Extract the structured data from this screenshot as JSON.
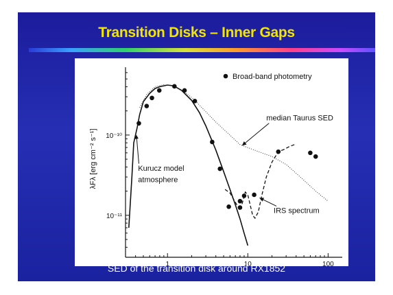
{
  "slide": {
    "title": "Transition Disks – Inner Gaps",
    "caption": "SED of the transition disk around RX1852"
  },
  "colors": {
    "background": "#2630b4",
    "title": "#f2e600",
    "caption": "#ffffff"
  },
  "chart_data": {
    "type": "scatter",
    "xscale": "log",
    "yscale": "log",
    "xlim": [
      0.3,
      150
    ],
    "ylim": [
      3e-12,
      7e-10
    ],
    "ylabel": "λFλ [erg cm⁻² s⁻¹]",
    "x_ticks": [
      "1",
      "10",
      "100"
    ],
    "y_ticks": [
      "10⁻¹⁰",
      "10⁻¹¹"
    ],
    "legend": {
      "marker_label": "Broad-band photometry",
      "placement": "top-right"
    },
    "annotations": [
      {
        "text": "median Taurus SED",
        "x": 17,
        "y": 1.52e-10,
        "x_end": 8.5,
        "y_end": 7.4e-11
      },
      {
        "text": "Kurucz model",
        "x": 0.43,
        "y": 3.6e-11
      },
      {
        "text": "atmosphere",
        "x": 0.43,
        "y": 2.6e-11
      },
      {
        "text": "IRS spectrum",
        "x": 21,
        "y": 1.07e-11,
        "x_end": 14,
        "y_end": 1.65e-11
      }
    ],
    "series": [
      {
        "name": "Broad-band photometry",
        "style": "points",
        "points": [
          [
            0.44,
            1.4e-10
          ],
          [
            0.55,
            2.3e-10
          ],
          [
            0.64,
            2.9e-10
          ],
          [
            0.79,
            3.6e-10
          ],
          [
            1.22,
            4.05e-10
          ],
          [
            1.63,
            3.6e-10
          ],
          [
            2.19,
            2.65e-10
          ],
          [
            3.6,
            8.2e-11
          ],
          [
            4.5,
            3.8e-11
          ],
          [
            5.8,
            1.28e-11
          ],
          [
            8.0,
            1.5e-11
          ],
          [
            8.0,
            1.25e-11
          ],
          [
            9.0,
            1.75e-11
          ],
          [
            12,
            1.8e-11
          ],
          [
            24,
            6.2e-11
          ],
          [
            60,
            6e-11
          ],
          [
            70,
            5.4e-11
          ]
        ]
      },
      {
        "name": "Kurucz model atmosphere",
        "style": "solid",
        "points": [
          [
            0.33,
            7e-12
          ],
          [
            0.36,
            3e-11
          ],
          [
            0.38,
            8e-11
          ],
          [
            0.42,
            1.25e-10
          ],
          [
            0.45,
            1.8e-10
          ],
          [
            0.5,
            2.6e-10
          ],
          [
            0.6,
            3.3e-10
          ],
          [
            0.7,
            3.8e-10
          ],
          [
            0.8,
            4e-10
          ],
          [
            1.0,
            4.2e-10
          ],
          [
            1.2,
            4.1e-10
          ],
          [
            1.5,
            3.6e-10
          ],
          [
            2.0,
            2.7e-10
          ],
          [
            2.5,
            1.9e-10
          ],
          [
            3.0,
            1.3e-10
          ],
          [
            4.0,
            6.5e-11
          ],
          [
            5.0,
            3.5e-11
          ],
          [
            6.0,
            2.1e-11
          ],
          [
            7.0,
            1.35e-11
          ],
          [
            8.0,
            9e-12
          ],
          [
            9.0,
            6e-12
          ],
          [
            10.0,
            4.2e-12
          ]
        ]
      },
      {
        "name": "median Taurus SED",
        "style": "dotted",
        "points": [
          [
            0.45,
            2.2e-10
          ],
          [
            0.55,
            3.2e-10
          ],
          [
            0.7,
            4e-10
          ],
          [
            0.9,
            4.25e-10
          ],
          [
            1.2,
            4.1e-10
          ],
          [
            1.6,
            3.5e-10
          ],
          [
            2.2,
            2.7e-10
          ],
          [
            3.0,
            1.95e-10
          ],
          [
            4.0,
            1.45e-10
          ],
          [
            6.0,
            1e-10
          ],
          [
            8.0,
            7.6e-11
          ],
          [
            12,
            6.5e-11
          ],
          [
            20,
            5.4e-11
          ],
          [
            30,
            4.3e-11
          ],
          [
            45,
            3e-11
          ],
          [
            70,
            2e-11
          ],
          [
            100,
            1.5e-11
          ]
        ]
      },
      {
        "name": "IRS spectrum",
        "style": "dashed",
        "points": [
          [
            5.2,
            2.1e-11
          ],
          [
            6.0,
            1.9e-11
          ],
          [
            7.0,
            1.45e-11
          ],
          [
            8.0,
            1.15e-11
          ],
          [
            8.6,
            1.45e-11
          ],
          [
            9.3,
            1.95e-11
          ],
          [
            10.0,
            1.8e-11
          ],
          [
            10.8,
            1.3e-11
          ],
          [
            11.5,
            1e-11
          ],
          [
            12.3,
            9.2e-12
          ],
          [
            13.5,
            1.1e-11
          ],
          [
            15,
            1.8e-11
          ],
          [
            17,
            3e-11
          ],
          [
            20,
            4.6e-11
          ],
          [
            24,
            6.2e-11
          ],
          [
            28,
            6.6e-11
          ],
          [
            33,
            7.2e-11
          ],
          [
            38,
            7.6e-11
          ]
        ]
      }
    ]
  }
}
